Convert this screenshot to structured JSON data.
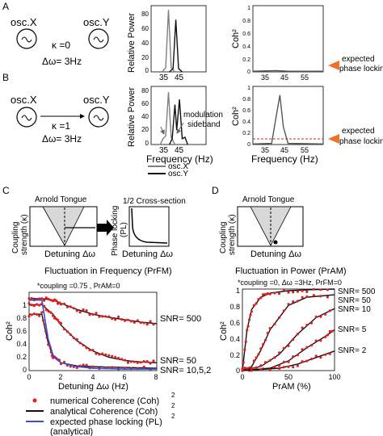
{
  "panels": {
    "A": {
      "letter": "A",
      "osc_x": "osc.X",
      "osc_y": "osc.Y",
      "kappa": "κ =0",
      "delta_omega": "Δω= 3Hz",
      "power_ylabel": "Relative Power",
      "power_ticks_x": [
        "35",
        "45"
      ],
      "power_ticks_y": [
        "80",
        "60",
        "40",
        "20",
        "0"
      ],
      "coh_ylabel": "Coh²",
      "coh_ticks_x": [
        "35",
        "45",
        "55"
      ],
      "coh_ticks_y": [
        "1",
        "0.8",
        "0.6",
        "0.4",
        "0.2",
        "0"
      ],
      "expected_label_line1": "expected",
      "expected_label_line2": "phase locking"
    },
    "B": {
      "letter": "B",
      "osc_x": "osc.X",
      "osc_y": "osc.Y",
      "kappa": "κ =1",
      "delta_omega": "Δω= 3Hz",
      "power_ylabel": "Relative Power",
      "power_ticks_x": [
        "35",
        "45"
      ],
      "power_ticks_y": [
        "80",
        "60",
        "40",
        "20",
        "0"
      ],
      "power_xlabel": "Frequency   (Hz)",
      "annotation_line1": "modulation",
      "annotation_line2": "sideband",
      "coh_ylabel": "Coh²",
      "coh_ticks_x": [
        "35",
        "45",
        "55"
      ],
      "coh_ticks_y": [
        "1",
        "0.8",
        "0.6",
        "0.4",
        "0.2",
        "0"
      ],
      "coh_xlabel": "Frequency   (Hz)",
      "expected_label_line1": "expected",
      "expected_label_line2": "phase locking",
      "legend": [
        "osc.X",
        "osc.Y"
      ]
    },
    "C": {
      "letter": "C",
      "tongue_title": "Arnold Tongue",
      "tongue_ylabel_line1": "Coupling",
      "tongue_ylabel_line2": "strength (κ)",
      "tongue_xlabel": "Detuning Δω",
      "section_title": "1/2 Cross-section",
      "section_ylabel_line1": "Phase locking",
      "section_ylabel_line2": "(PL)",
      "section_xlabel": "Detuning Δω",
      "plot_title": "Fluctuation in Frequency (PrFM)",
      "plot_subtitle": "*coupling =0.75 , PrAM=0",
      "ylabel": "Coh²",
      "xlabel": "Detuning Δω (Hz)",
      "ticks_x": [
        "0",
        "2",
        "4",
        "6",
        "8"
      ],
      "ticks_y": [
        "1",
        "0.8",
        "0.6",
        "0.4",
        "0.2",
        "0"
      ],
      "snr_labels": [
        "SNR= 500",
        "SNR= 50",
        "SNR= 10,5,2"
      ]
    },
    "D": {
      "letter": "D",
      "tongue_title": "Arnold Tongue",
      "tongue_ylabel_line1": "Coupling",
      "tongue_ylabel_line2": "strength (κ)",
      "tongue_xlabel": "Detuning Δω",
      "plot_title": "Fluctuation in Power (PrAM)",
      "plot_subtitle": "*coupling =0,  Δω =3Hz, PrFM=0",
      "ylabel": "Coh²",
      "xlabel": "PrAM (%)",
      "ticks_x": [
        "0",
        "50",
        "100"
      ],
      "ticks_y": [
        "1",
        "0.8",
        "0.6",
        "0.4",
        "0.2",
        "0"
      ],
      "snr_labels": [
        "SNR= 500",
        "SNR= 50",
        "SNR= 10",
        "SNR= 5",
        "SNR= 2"
      ]
    }
  },
  "legend_bottom": {
    "numerical": "numerical Coherence (Coh)",
    "numerical_sup": "2",
    "analytical": "analytical Coherence (Coh)",
    "analytical_sup": "2",
    "expected": "expected phase locking (PL)",
    "expected_sup": "2",
    "expected_sub": "(analytical)"
  },
  "colors": {
    "osc_x": "#808080",
    "osc_y": "#111111",
    "numerical": "#e02020",
    "analytical": "#111111",
    "expected": "#3a4fd0",
    "arrow": "#f07030",
    "tongue_fill": "#d8d8d8"
  },
  "chart_data": [
    {
      "type": "line",
      "panel": "A-power",
      "ylabel": "Relative Power",
      "xlim": [
        30,
        60
      ],
      "ylim": [
        0,
        80
      ],
      "series": [
        {
          "name": "osc.X",
          "x": [
            36,
            38,
            39.5,
            41,
            43
          ],
          "values": [
            0,
            5,
            75,
            5,
            0
          ]
        },
        {
          "name": "osc.Y",
          "x": [
            40,
            42,
            43.5,
            45,
            47
          ],
          "values": [
            0,
            4,
            63,
            4,
            0
          ]
        }
      ]
    },
    {
      "type": "line",
      "panel": "A-coherence",
      "ylabel": "Coh²",
      "xlim": [
        30,
        60
      ],
      "ylim": [
        0,
        1
      ],
      "series": [
        {
          "x": [
            30,
            40,
            45,
            60
          ],
          "values": [
            0.01,
            0.02,
            0.01,
            0.01
          ]
        }
      ]
    },
    {
      "type": "line",
      "panel": "B-power",
      "ylabel": "Relative Power",
      "xlabel": "Frequency (Hz)",
      "xlim": [
        30,
        60
      ],
      "ylim": [
        0,
        80
      ],
      "series": [
        {
          "name": "osc.X",
          "x": [
            35,
            36.5,
            38,
            39.5,
            41,
            43
          ],
          "values": [
            0,
            8,
            12,
            72,
            10,
            0
          ]
        },
        {
          "name": "osc.Y",
          "x": [
            40,
            41.5,
            43,
            44,
            45.5,
            47,
            48.5,
            50
          ],
          "values": [
            0,
            8,
            55,
            20,
            62,
            8,
            10,
            0
          ]
        }
      ]
    },
    {
      "type": "line",
      "panel": "B-coherence",
      "ylabel": "Coh²",
      "xlabel": "Frequency (Hz)",
      "xlim": [
        30,
        60
      ],
      "ylim": [
        0,
        1
      ],
      "series": [
        {
          "x": [
            30,
            38,
            40,
            41.5,
            43,
            45,
            60
          ],
          "values": [
            0.01,
            0.02,
            0.5,
            0.85,
            0.3,
            0.02,
            0.01
          ]
        }
      ]
    },
    {
      "type": "line",
      "panel": "C",
      "title": "Fluctuation in Frequency (PrFM)",
      "xlabel": "Detuning Δω (Hz)",
      "ylabel": "Coh²",
      "xlim": [
        0,
        8
      ],
      "ylim": [
        0,
        1
      ],
      "series": [
        {
          "name": "SNR= 500",
          "x": [
            0,
            0.8,
            1.5,
            2,
            3,
            4,
            5,
            6,
            7,
            8
          ],
          "values": [
            0.92,
            0.92,
            0.9,
            0.86,
            0.78,
            0.72,
            0.68,
            0.65,
            0.62,
            0.6
          ]
        },
        {
          "name": "SNR= 50",
          "x": [
            0,
            0.8,
            1.5,
            2,
            3,
            4,
            5,
            6,
            7,
            8
          ],
          "values": [
            0.84,
            0.84,
            0.72,
            0.58,
            0.38,
            0.25,
            0.17,
            0.13,
            0.11,
            0.1
          ]
        },
        {
          "name": "SNR= 10,5,2",
          "x": [
            0,
            0.8,
            1.2,
            1.5,
            2,
            3,
            4,
            6,
            8
          ],
          "values": [
            0.72,
            0.72,
            0.35,
            0.18,
            0.1,
            0.06,
            0.05,
            0.04,
            0.03
          ]
        },
        {
          "name": "expected PL",
          "x": [
            0,
            0.8,
            1.2,
            1.5,
            2,
            3,
            4,
            6,
            8
          ],
          "values": [
            0.9,
            0.9,
            0.4,
            0.2,
            0.1,
            0.05,
            0.03,
            0.02,
            0.02
          ]
        }
      ]
    },
    {
      "type": "line",
      "panel": "D",
      "title": "Fluctuation in Power (PrAM)",
      "xlabel": "PrAM (%)",
      "ylabel": "Coh²",
      "xlim": [
        0,
        100
      ],
      "ylim": [
        0,
        1
      ],
      "series": [
        {
          "name": "SNR= 500",
          "x": [
            0,
            5,
            10,
            20,
            30,
            50,
            70,
            100
          ],
          "values": [
            0,
            0.5,
            0.75,
            0.9,
            0.95,
            0.98,
            0.99,
            1.0
          ]
        },
        {
          "name": "SNR= 50",
          "x": [
            0,
            10,
            20,
            30,
            50,
            70,
            100
          ],
          "values": [
            0,
            0.05,
            0.25,
            0.5,
            0.8,
            0.9,
            0.93
          ]
        },
        {
          "name": "SNR= 10",
          "x": [
            0,
            20,
            40,
            60,
            80,
            100
          ],
          "values": [
            0,
            0.05,
            0.2,
            0.45,
            0.65,
            0.76
          ]
        },
        {
          "name": "SNR= 5",
          "x": [
            0,
            30,
            50,
            70,
            90,
            100
          ],
          "values": [
            0,
            0.03,
            0.12,
            0.28,
            0.42,
            0.5
          ]
        },
        {
          "name": "SNR= 2",
          "x": [
            0,
            40,
            60,
            80,
            100
          ],
          "values": [
            0,
            0.03,
            0.08,
            0.16,
            0.24
          ]
        }
      ]
    }
  ]
}
